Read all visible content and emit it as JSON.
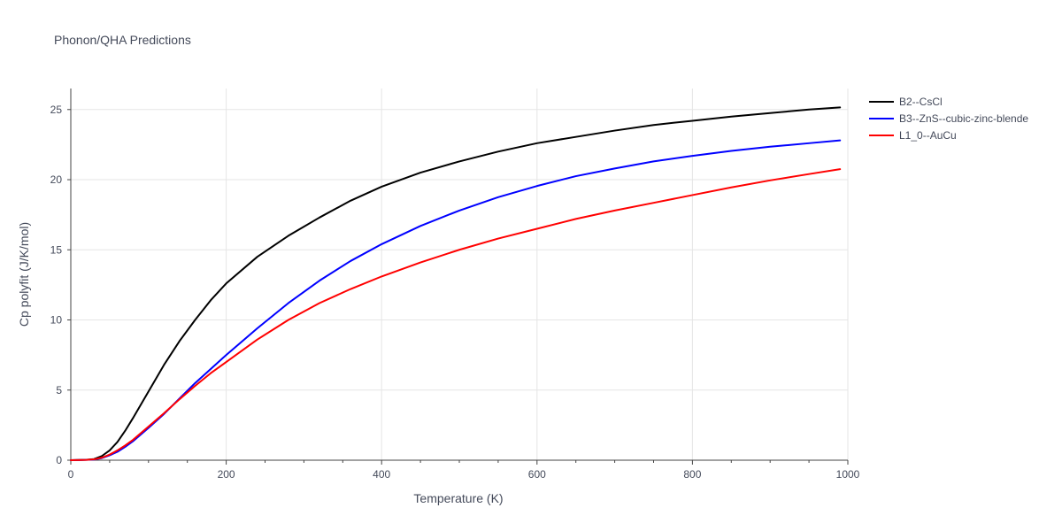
{
  "chart_data": {
    "type": "line",
    "title": "Phonon/QHA Predictions",
    "xlabel": "Temperature (K)",
    "ylabel": "Cp polyfit (J/K/mol)",
    "xlim": [
      0,
      1000
    ],
    "ylim": [
      0,
      26.5
    ],
    "xticks": [
      0,
      200,
      400,
      600,
      800,
      1000
    ],
    "yticks": [
      0,
      5,
      10,
      15,
      20,
      25
    ],
    "grid": true,
    "legend_position": "top-right",
    "series": [
      {
        "name": "B2--CsCl",
        "color": "#000000",
        "x": [
          0,
          20,
          30,
          40,
          50,
          60,
          70,
          80,
          100,
          120,
          140,
          160,
          180,
          200,
          240,
          280,
          320,
          360,
          400,
          450,
          500,
          550,
          600,
          650,
          700,
          750,
          800,
          850,
          900,
          950,
          990
        ],
        "y": [
          0,
          0.03,
          0.08,
          0.3,
          0.7,
          1.3,
          2.1,
          3.0,
          4.9,
          6.8,
          8.5,
          10.0,
          11.4,
          12.6,
          14.5,
          16.0,
          17.3,
          18.5,
          19.5,
          20.5,
          21.3,
          22.0,
          22.6,
          23.05,
          23.5,
          23.9,
          24.2,
          24.5,
          24.75,
          25.0,
          25.15
        ]
      },
      {
        "name": "B3--ZnS--cubic-zinc-blende",
        "color": "#0000ff",
        "x": [
          0,
          20,
          30,
          40,
          50,
          60,
          70,
          80,
          100,
          120,
          140,
          160,
          180,
          200,
          240,
          280,
          320,
          360,
          400,
          450,
          500,
          550,
          600,
          650,
          700,
          750,
          800,
          850,
          900,
          950,
          990
        ],
        "y": [
          0,
          0.02,
          0.05,
          0.15,
          0.35,
          0.6,
          0.95,
          1.35,
          2.3,
          3.3,
          4.4,
          5.5,
          6.5,
          7.5,
          9.4,
          11.2,
          12.8,
          14.2,
          15.4,
          16.7,
          17.8,
          18.75,
          19.55,
          20.25,
          20.8,
          21.3,
          21.7,
          22.05,
          22.35,
          22.6,
          22.8
        ]
      },
      {
        "name": "L1_0--AuCu",
        "color": "#ff0000",
        "x": [
          0,
          20,
          30,
          40,
          50,
          60,
          70,
          80,
          100,
          120,
          140,
          160,
          180,
          200,
          240,
          280,
          320,
          360,
          400,
          450,
          500,
          550,
          600,
          650,
          700,
          750,
          800,
          850,
          900,
          950,
          990
        ],
        "y": [
          0,
          0.02,
          0.06,
          0.18,
          0.4,
          0.7,
          1.05,
          1.45,
          2.4,
          3.35,
          4.35,
          5.3,
          6.2,
          7.0,
          8.6,
          10.0,
          11.2,
          12.2,
          13.1,
          14.1,
          15.0,
          15.8,
          16.5,
          17.2,
          17.8,
          18.35,
          18.9,
          19.45,
          19.95,
          20.4,
          20.75
        ]
      }
    ]
  }
}
